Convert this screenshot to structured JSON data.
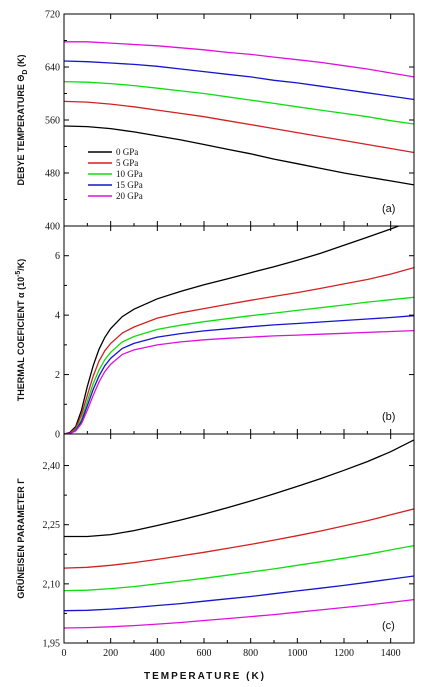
{
  "colors": {
    "0 GPa": "#000000",
    "5 GPa": "#d42020",
    "10 GPa": "#10dd10",
    "15 GPa": "#1515cc",
    "20 GPa": "#dd11dd"
  },
  "xaxis": {
    "label": "TEMPERATURE (K)",
    "range": [
      0,
      1500
    ],
    "ticks": [
      0,
      200,
      400,
      600,
      800,
      1000,
      1200,
      1400
    ]
  },
  "chart_data": [
    {
      "type": "line",
      "panel_label": "(a)",
      "ylabel": "DEBYE TEMPERATURE  Θ",
      "ylabel_sub": "D",
      "ylabel_unit": " (K)",
      "ylim": [
        400,
        720
      ],
      "yticks": [
        {
          "v": 400,
          "label": "400"
        },
        {
          "v": 480,
          "label": "480"
        },
        {
          "v": 560,
          "label": "560"
        },
        {
          "v": 640,
          "label": "640"
        },
        {
          "v": 720,
          "label": "720"
        }
      ],
      "legend": {
        "placement": "lower-left",
        "entries": [
          "0 GPa",
          "5 GPa",
          "10 GPa",
          "15 GPa",
          "20 GPa"
        ]
      },
      "x": [
        0,
        100,
        200,
        300,
        400,
        500,
        600,
        700,
        800,
        900,
        1000,
        1100,
        1200,
        1300,
        1400,
        1500
      ],
      "series": [
        {
          "name": "0 GPa",
          "values": [
            551,
            550,
            547,
            542,
            536,
            530,
            523,
            516,
            509,
            501,
            494,
            487,
            480,
            474,
            468,
            462
          ]
        },
        {
          "name": "5 GPa",
          "values": [
            588,
            587,
            584,
            580,
            575,
            570,
            565,
            559,
            553,
            547,
            541,
            535,
            529,
            523,
            517,
            511
          ]
        },
        {
          "name": "10 GPa",
          "values": [
            618,
            617,
            615,
            612,
            608,
            604,
            600,
            595,
            590,
            585,
            580,
            575,
            570,
            565,
            559,
            554
          ]
        },
        {
          "name": "15 GPa",
          "values": [
            649,
            648,
            646,
            644,
            641,
            637,
            633,
            629,
            625,
            620,
            616,
            611,
            606,
            601,
            596,
            591
          ]
        },
        {
          "name": "20 GPa",
          "values": [
            678,
            678,
            676,
            674,
            672,
            669,
            666,
            662,
            659,
            655,
            651,
            647,
            642,
            637,
            631,
            625
          ]
        }
      ]
    },
    {
      "type": "line",
      "panel_label": "(b)",
      "ylabel": "THERMAL COEFICIENT  α (10",
      "ylabel_sup": "-5",
      "ylabel_unit": "/K)",
      "ylim": [
        0,
        7
      ],
      "yticks": [
        {
          "v": 0,
          "label": "0"
        },
        {
          "v": 2,
          "label": "2"
        },
        {
          "v": 4,
          "label": "4"
        },
        {
          "v": 6,
          "label": "6"
        }
      ],
      "x": [
        0,
        25,
        50,
        75,
        100,
        125,
        150,
        175,
        200,
        250,
        300,
        400,
        500,
        600,
        700,
        800,
        900,
        1000,
        1100,
        1200,
        1300,
        1400,
        1500
      ],
      "series": [
        {
          "name": "0 GPa",
          "values": [
            0,
            0.05,
            0.25,
            0.8,
            1.6,
            2.3,
            2.85,
            3.25,
            3.55,
            3.95,
            4.2,
            4.55,
            4.8,
            5.02,
            5.22,
            5.43,
            5.63,
            5.85,
            6.08,
            6.35,
            6.62,
            6.9,
            7.2
          ]
        },
        {
          "name": "5 GPa",
          "values": [
            0,
            0.03,
            0.2,
            0.65,
            1.3,
            1.95,
            2.45,
            2.8,
            3.05,
            3.4,
            3.6,
            3.9,
            4.08,
            4.22,
            4.36,
            4.5,
            4.63,
            4.76,
            4.9,
            5.05,
            5.2,
            5.38,
            5.6
          ]
        },
        {
          "name": "10 GPa",
          "values": [
            0,
            0.02,
            0.15,
            0.5,
            1.1,
            1.7,
            2.15,
            2.5,
            2.75,
            3.1,
            3.28,
            3.52,
            3.66,
            3.78,
            3.88,
            3.98,
            4.07,
            4.16,
            4.25,
            4.34,
            4.44,
            4.52,
            4.6
          ]
        },
        {
          "name": "15 GPa",
          "values": [
            0,
            0.02,
            0.12,
            0.42,
            0.95,
            1.5,
            1.95,
            2.3,
            2.55,
            2.88,
            3.05,
            3.26,
            3.38,
            3.47,
            3.54,
            3.61,
            3.67,
            3.72,
            3.77,
            3.82,
            3.87,
            3.92,
            3.98
          ]
        },
        {
          "name": "20 GPa",
          "values": [
            0,
            0.01,
            0.1,
            0.35,
            0.8,
            1.3,
            1.75,
            2.1,
            2.35,
            2.68,
            2.83,
            3.0,
            3.1,
            3.17,
            3.22,
            3.26,
            3.3,
            3.33,
            3.36,
            3.39,
            3.42,
            3.45,
            3.48
          ]
        }
      ]
    },
    {
      "type": "line",
      "panel_label": "(c)",
      "ylabel": "GRÜNEISEN PARAMETER  Γ",
      "ylim": [
        1.95,
        2.48
      ],
      "yticks": [
        {
          "v": 1.95,
          "label": "1,95"
        },
        {
          "v": 2.1,
          "label": "2,10"
        },
        {
          "v": 2.25,
          "label": "2,25"
        },
        {
          "v": 2.4,
          "label": "2,40"
        }
      ],
      "x": [
        0,
        100,
        200,
        300,
        400,
        500,
        600,
        700,
        800,
        900,
        1000,
        1100,
        1200,
        1300,
        1400,
        1500
      ],
      "series": [
        {
          "name": "0 GPa",
          "values": [
            2.22,
            2.22,
            2.225,
            2.235,
            2.248,
            2.262,
            2.277,
            2.293,
            2.31,
            2.328,
            2.347,
            2.367,
            2.388,
            2.41,
            2.435,
            2.465
          ]
        },
        {
          "name": "5 GPa",
          "values": [
            2.14,
            2.142,
            2.147,
            2.154,
            2.162,
            2.171,
            2.18,
            2.19,
            2.2,
            2.211,
            2.222,
            2.234,
            2.247,
            2.26,
            2.275,
            2.29
          ]
        },
        {
          "name": "10 GPa",
          "values": [
            2.083,
            2.084,
            2.088,
            2.093,
            2.1,
            2.107,
            2.114,
            2.122,
            2.13,
            2.138,
            2.147,
            2.156,
            2.165,
            2.175,
            2.186,
            2.197
          ]
        },
        {
          "name": "15 GPa",
          "values": [
            2.032,
            2.033,
            2.036,
            2.04,
            2.045,
            2.05,
            2.056,
            2.062,
            2.068,
            2.075,
            2.082,
            2.089,
            2.096,
            2.104,
            2.112,
            2.12
          ]
        },
        {
          "name": "20 GPa",
          "values": [
            1.988,
            1.989,
            1.991,
            1.994,
            1.998,
            2.002,
            2.007,
            2.012,
            2.017,
            2.022,
            2.028,
            2.034,
            2.04,
            2.046,
            2.053,
            2.06
          ]
        }
      ]
    }
  ]
}
